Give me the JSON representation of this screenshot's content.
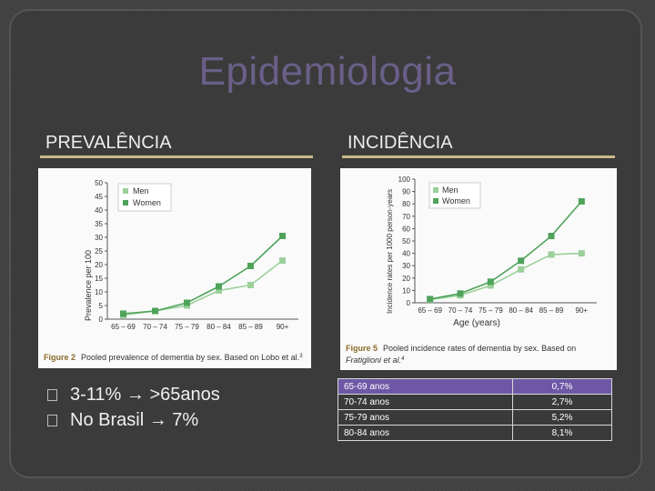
{
  "slide": {
    "title": "Epidemiologia",
    "left_header": "PREVALÊNCIA",
    "right_header": "INCIDÊNCIA"
  },
  "left_chart": {
    "caption_bold": "Figure 2",
    "caption_text": "Pooled prevalence of dementia by sex. Based on Lobo et al.",
    "caption_sup": "3",
    "legend": [
      "Men",
      "Women"
    ]
  },
  "right_chart": {
    "caption_bold": "Figure 5",
    "caption_text_1": "Pooled incidence rates of dementia by sex. Based on",
    "caption_text_2": "Fratiglioni et al.",
    "caption_sup": "4",
    "legend": [
      "Men",
      "Women"
    ]
  },
  "bullets": [
    {
      "a": "3-11%",
      "arrow": "→",
      "b": ">65anos"
    },
    {
      "a": "No Brasil",
      "arrow": "→",
      "b": "7%"
    }
  ],
  "table": {
    "rows": [
      [
        "65-69 anos",
        "0,7%"
      ],
      [
        "70-74 anos",
        "2,7%"
      ],
      [
        "75-79 anos",
        "5,2%"
      ],
      [
        "80-84 anos",
        "8,1%"
      ]
    ]
  },
  "colors": {
    "men": "#9bd09b",
    "women": "#4fa35a",
    "accent": "#6e58a6",
    "rule": "#c9b98a"
  },
  "chart_data": [
    {
      "type": "line",
      "title": "",
      "xlabel": "",
      "ylabel": "Prevalence per 100",
      "categories": [
        "65 – 69",
        "70 – 74",
        "75 – 79",
        "80 – 84",
        "85 – 89",
        "90+"
      ],
      "ylim": [
        0,
        50
      ],
      "yticks": [
        0,
        5,
        10,
        15,
        20,
        25,
        30,
        35,
        40,
        45,
        50
      ],
      "series": [
        {
          "name": "Men",
          "values": [
            1.5,
            3,
            5,
            10.5,
            12.5,
            21.5
          ]
        },
        {
          "name": "Women",
          "values": [
            2,
            3,
            6,
            12,
            19.5,
            30.5
          ]
        }
      ]
    },
    {
      "type": "line",
      "title": "",
      "xlabel": "Age (years)",
      "ylabel": "Incidence rates per 1000 person-years",
      "categories": [
        "65 – 69",
        "70 – 74",
        "75 – 79",
        "80 – 84",
        "85 – 89",
        "90+"
      ],
      "ylim": [
        0,
        100
      ],
      "yticks": [
        0,
        10,
        20,
        30,
        40,
        50,
        60,
        70,
        80,
        90,
        100
      ],
      "series": [
        {
          "name": "Men",
          "values": [
            2.5,
            6,
            14,
            27,
            39,
            40
          ]
        },
        {
          "name": "Women",
          "values": [
            3,
            7.5,
            17,
            34,
            54,
            82
          ]
        }
      ]
    }
  ]
}
